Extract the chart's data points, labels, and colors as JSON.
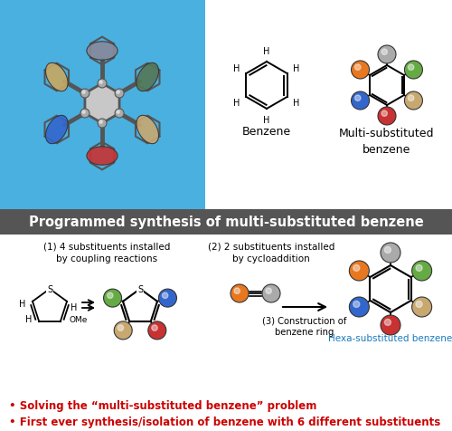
{
  "title": "Programmed synthesis of multi-substituted benzene",
  "title_bg": "#555555",
  "title_color": "#ffffff",
  "benzene_label": "Benzene",
  "multi_label": "Multi-substituted\nbenzene",
  "step1_label": "(1) 4 substituents installed\nby coupling reactions",
  "step2_label": "(2) 2 substituents installed\nby cycloaddition",
  "step3_label": "(3) Construction of\nbenzene ring",
  "hexa_label": "Hexa-substituted benzene",
  "hexa_color": "#1a7abf",
  "bullet1": "• Solving the “multi-substituted benzene” problem",
  "bullet2": "• First ever synthesis/isolation of benzene with 6 different substituents",
  "bullet_color": "#cc0000",
  "colors": {
    "red": "#c83232",
    "tan": "#c8a870",
    "blue": "#3366cc",
    "orange": "#e87820",
    "green": "#66aa44",
    "gray": "#aaaaaa",
    "silver": "#bbbbbb",
    "darkgray": "#555555"
  },
  "top_bg_color": "#4ab0e0",
  "fig_width": 5.0,
  "fig_height": 4.77
}
